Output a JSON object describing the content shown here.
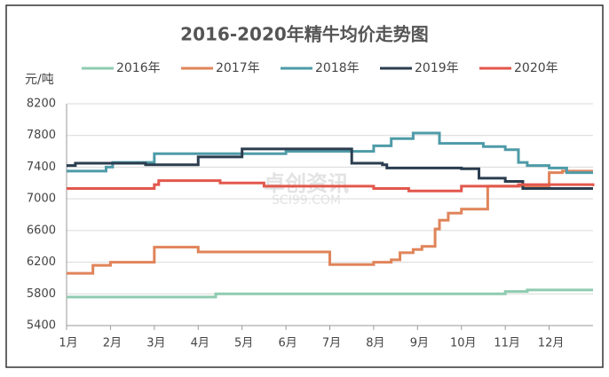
{
  "chart_data": {
    "type": "line",
    "title": "2016-2020年精牛均价走势图",
    "y_label": "元/吨",
    "watermark": [
      "卓创资讯",
      "SCI99.COM"
    ],
    "step": true,
    "grid": true,
    "legend": "top",
    "xlim": [
      1,
      13
    ],
    "xticks": [
      {
        "value": 1,
        "label": "1月"
      },
      {
        "value": 2,
        "label": "2月"
      },
      {
        "value": 3,
        "label": "3月"
      },
      {
        "value": 4,
        "label": "4月"
      },
      {
        "value": 5,
        "label": "5月"
      },
      {
        "value": 6,
        "label": "6月"
      },
      {
        "value": 7,
        "label": "7月"
      },
      {
        "value": 8,
        "label": "8月"
      },
      {
        "value": 9,
        "label": "9月"
      },
      {
        "value": 10,
        "label": "10月"
      },
      {
        "value": 11,
        "label": "11月"
      },
      {
        "value": 12,
        "label": "12月"
      }
    ],
    "ylim": [
      5400,
      8200
    ],
    "yticks": [
      5400,
      5800,
      6200,
      6600,
      7000,
      7400,
      7800,
      8200
    ],
    "series": [
      {
        "name": "2016年",
        "color": "#8fcbb0",
        "x": [
          1,
          4.4,
          11.0,
          11.5,
          13
        ],
        "values": [
          5760,
          5800,
          5830,
          5850,
          5850
        ]
      },
      {
        "name": "2017年",
        "color": "#e0845a",
        "x": [
          1,
          1.6,
          2.0,
          3.0,
          4.0,
          7.0,
          8.0,
          8.4,
          8.6,
          8.9,
          9.1,
          9.4,
          9.5,
          9.7,
          10.0,
          10.6,
          12.0,
          12.3,
          13
        ],
        "values": [
          6060,
          6160,
          6200,
          6390,
          6330,
          6170,
          6200,
          6230,
          6320,
          6360,
          6400,
          6620,
          6730,
          6820,
          6870,
          7160,
          7330,
          7350,
          7350
        ]
      },
      {
        "name": "2018年",
        "color": "#4e9ba8",
        "x": [
          1,
          1.9,
          2.05,
          3.0,
          6.0,
          8.0,
          8.4,
          8.9,
          9.5,
          10.5,
          11.0,
          11.3,
          11.5,
          12.0,
          12.4,
          13
        ],
        "values": [
          7350,
          7400,
          7460,
          7570,
          7600,
          7670,
          7760,
          7830,
          7700,
          7660,
          7620,
          7460,
          7420,
          7390,
          7330,
          7330
        ]
      },
      {
        "name": "2019年",
        "color": "#2b3d4f",
        "x": [
          1,
          1.2,
          2.8,
          4.0,
          5.0,
          7.5,
          8.2,
          8.3,
          10.0,
          10.4,
          11.0,
          11.4,
          13
        ],
        "values": [
          7420,
          7450,
          7430,
          7530,
          7630,
          7450,
          7430,
          7390,
          7380,
          7260,
          7220,
          7130,
          7130
        ]
      },
      {
        "name": "2020年",
        "color": "#e2574c",
        "x": [
          1,
          3.0,
          3.1,
          4.5,
          5.5,
          8.0,
          8.8,
          10.0,
          11.3,
          13
        ],
        "values": [
          7130,
          7180,
          7230,
          7200,
          7160,
          7130,
          7100,
          7160,
          7180,
          7160
        ]
      }
    ]
  }
}
